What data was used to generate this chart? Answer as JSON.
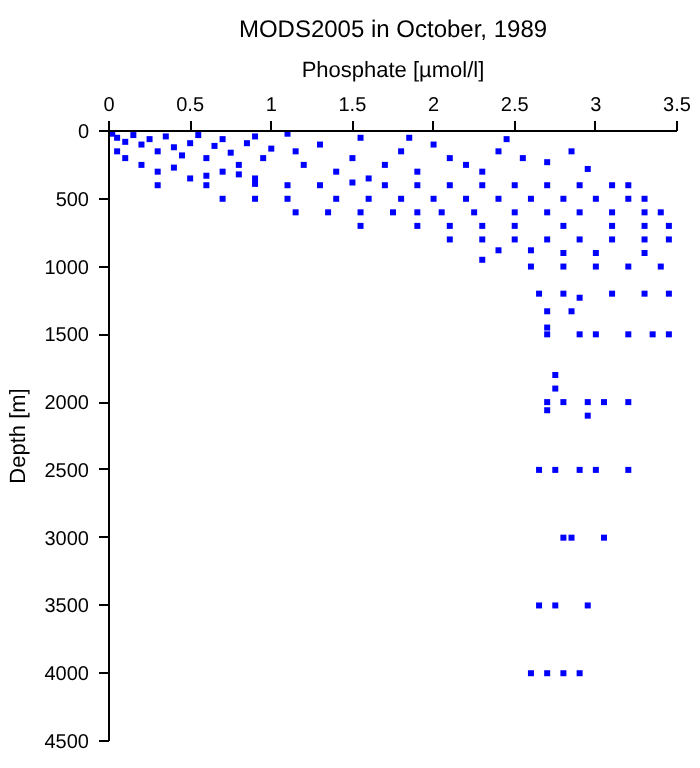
{
  "chart_data": {
    "type": "scatter",
    "title": "MODS2005 in October, 1989",
    "xlabel": "Phosphate [µmol/l]",
    "ylabel": "Depth [m]",
    "xlim": [
      0,
      3.5
    ],
    "xticks": [
      0,
      0.5,
      1,
      1.5,
      2,
      2.5,
      3,
      3.5
    ],
    "ylim": [
      4500,
      0
    ],
    "yticks": [
      0,
      500,
      1000,
      1500,
      2000,
      2500,
      3000,
      3500,
      4000,
      4500
    ],
    "grid": false,
    "marker": "square",
    "series": [
      {
        "color": "#0000ff",
        "x": [
          0.02,
          0.05,
          0.1,
          0.15,
          0.2,
          0.25,
          0.3,
          0.35,
          0.4,
          0.45,
          0.5,
          0.55,
          0.6,
          0.65,
          0.7,
          0.75,
          0.8,
          0.85,
          0.9,
          0.95,
          1.0,
          0.05,
          0.1,
          0.2,
          0.3,
          0.4,
          0.5,
          0.6,
          0.7,
          0.8,
          0.9,
          1.1,
          1.15,
          1.2,
          1.3,
          1.4,
          1.5,
          1.55,
          1.6,
          1.7,
          1.8,
          1.85,
          1.9,
          2.0,
          2.1,
          2.2,
          2.3,
          2.4,
          2.45,
          2.55,
          2.7,
          2.85,
          2.95,
          0.3,
          0.6,
          0.9,
          1.1,
          1.3,
          1.5,
          1.7,
          1.9,
          2.1,
          2.3,
          2.5,
          2.7,
          2.9,
          3.1,
          3.2,
          0.7,
          0.9,
          1.1,
          1.4,
          1.6,
          1.8,
          2.0,
          2.2,
          2.4,
          2.6,
          2.8,
          3.0,
          3.2,
          3.3,
          1.15,
          1.35,
          1.55,
          1.75,
          1.9,
          2.05,
          2.25,
          2.5,
          2.7,
          2.9,
          3.1,
          3.3,
          3.4,
          1.55,
          1.9,
          2.1,
          2.3,
          2.5,
          2.8,
          3.1,
          3.3,
          3.45,
          2.1,
          2.3,
          2.5,
          2.7,
          2.9,
          3.1,
          3.3,
          3.45,
          2.4,
          2.6,
          2.8,
          3.0,
          3.3,
          2.3,
          2.6,
          2.8,
          3.0,
          3.2,
          3.4,
          2.65,
          2.8,
          2.9,
          3.1,
          3.3,
          3.45,
          2.7,
          2.85,
          2.7,
          2.7,
          2.9,
          3.0,
          3.2,
          3.35,
          3.45,
          2.75,
          2.75,
          2.7,
          2.8,
          2.95,
          3.05,
          3.2,
          2.7,
          2.95,
          2.65,
          2.75,
          2.9,
          3.0,
          3.2,
          2.8,
          2.85,
          3.05,
          2.65,
          2.75,
          2.95,
          2.6,
          2.7,
          2.8,
          2.9
        ],
        "values": [
          20,
          50,
          80,
          30,
          100,
          60,
          150,
          40,
          120,
          180,
          90,
          30,
          200,
          110,
          60,
          160,
          250,
          90,
          40,
          200,
          130,
          150,
          200,
          250,
          300,
          270,
          350,
          330,
          300,
          320,
          350,
          20,
          150,
          250,
          100,
          300,
          200,
          50,
          350,
          250,
          150,
          50,
          300,
          100,
          200,
          250,
          300,
          150,
          60,
          200,
          230,
          150,
          280,
          400,
          400,
          390,
          400,
          400,
          380,
          400,
          400,
          400,
          400,
          400,
          400,
          400,
          400,
          400,
          500,
          500,
          500,
          500,
          500,
          500,
          500,
          500,
          500,
          500,
          500,
          500,
          500,
          500,
          600,
          600,
          600,
          600,
          600,
          600,
          600,
          600,
          600,
          600,
          600,
          600,
          600,
          700,
          700,
          700,
          700,
          700,
          700,
          700,
          700,
          700,
          800,
          800,
          800,
          800,
          800,
          800,
          800,
          800,
          880,
          880,
          900,
          900,
          900,
          950,
          1000,
          1000,
          1000,
          1000,
          1000,
          1200,
          1200,
          1230,
          1200,
          1200,
          1200,
          1330,
          1330,
          1450,
          1500,
          1500,
          1500,
          1500,
          1500,
          1500,
          1800,
          1900,
          2000,
          2000,
          2000,
          2000,
          2000,
          2060,
          2100,
          2500,
          2500,
          2500,
          2500,
          2500,
          3000,
          3000,
          3000,
          3500,
          3500,
          3500,
          4000,
          4000,
          4000,
          4000
        ]
      }
    ]
  }
}
